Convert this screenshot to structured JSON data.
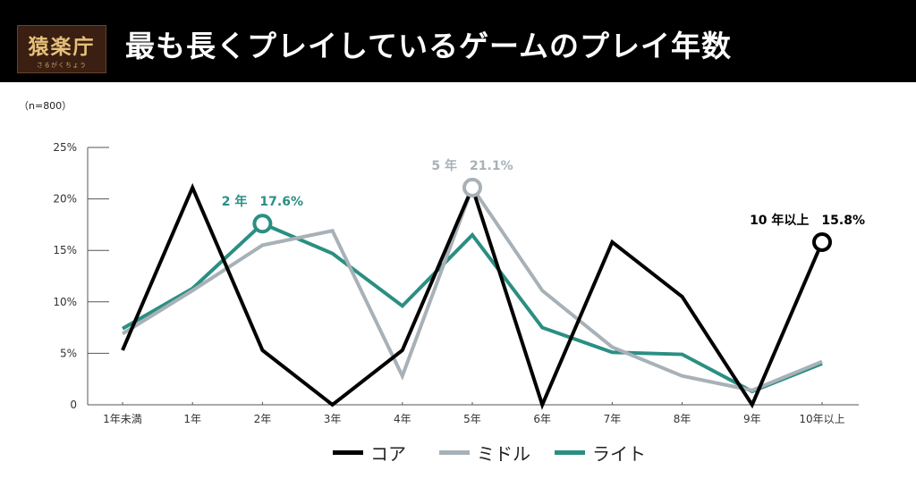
{
  "header": {
    "logo_text": "猿楽庁",
    "logo_subtext": "さるがくちょう",
    "title": "最も長くプレイしているゲームのプレイ年数"
  },
  "note": "（n=800）",
  "colors": {
    "core": "#000000",
    "middle": "#a7b1b7",
    "light": "#2a8f82",
    "axis": "#555555"
  },
  "chart_data": {
    "type": "line",
    "categories": [
      "1年未満",
      "1年",
      "2年",
      "3年",
      "4年",
      "5年",
      "6年",
      "7年",
      "8年",
      "9年",
      "10年以上"
    ],
    "y_tick_labels": [
      "0",
      "5%",
      "10%",
      "15%",
      "20%",
      "25%"
    ],
    "ylim": [
      0,
      25
    ],
    "grid": false,
    "legend_position": "bottom",
    "series": [
      {
        "name": "コア",
        "color": "#000000",
        "values": [
          5.3,
          21.1,
          5.3,
          0.0,
          5.3,
          21.1,
          0.0,
          15.8,
          10.5,
          0.0,
          15.8
        ]
      },
      {
        "name": "ミドル",
        "color": "#a7b1b7",
        "values": [
          6.9,
          11.1,
          15.5,
          16.9,
          2.8,
          21.1,
          11.1,
          5.6,
          2.8,
          1.4,
          4.2
        ]
      },
      {
        "name": "ライト",
        "color": "#2a8f82",
        "values": [
          7.4,
          11.3,
          17.6,
          14.7,
          9.6,
          16.5,
          7.5,
          5.1,
          4.9,
          1.3,
          4.0
        ]
      }
    ],
    "annotations": [
      {
        "series": 2,
        "index": 2,
        "label": "2 年　17.6%"
      },
      {
        "series": 1,
        "index": 5,
        "label": "5 年　21.1%"
      },
      {
        "series": 0,
        "index": 10,
        "label": "10 年以上　15.8%"
      }
    ]
  }
}
